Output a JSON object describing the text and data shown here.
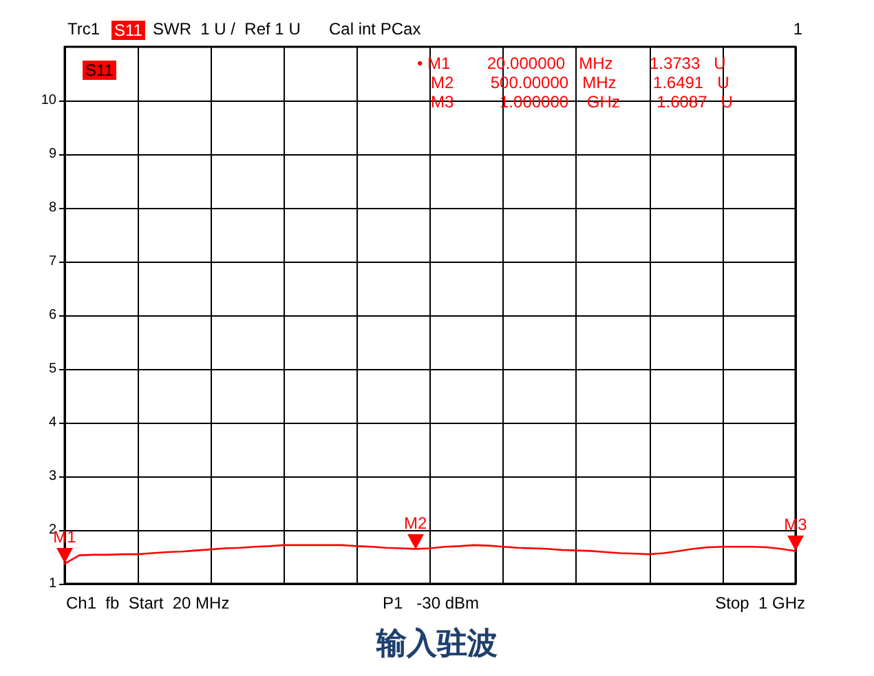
{
  "chart_data": {
    "type": "line",
    "title": "输入驻波",
    "categories": [
      null,
      null,
      null,
      null,
      null,
      null,
      null,
      null,
      null,
      null,
      null,
      null,
      null,
      null,
      null,
      null,
      null,
      null,
      null,
      null,
      null,
      null,
      null,
      null,
      null,
      null,
      null,
      null,
      null,
      null,
      null,
      null,
      null,
      null,
      null,
      null,
      null,
      null,
      null,
      null,
      null,
      null,
      null,
      null,
      null,
      null,
      null,
      null,
      null,
      null,
      null
    ],
    "ylim": [
      1,
      11
    ],
    "yticks": [
      1,
      2,
      3,
      4,
      5,
      6,
      7,
      8,
      9,
      10
    ],
    "tick_labels": "y",
    "grid": true,
    "marker": "none",
    "line_style": "solid",
    "series": [
      {
        "color": "#ff0000",
        "values": [
          1.3733,
          1.53,
          1.54,
          1.54,
          1.55,
          1.55,
          1.57,
          1.59,
          1.6,
          1.62,
          1.64,
          1.66,
          1.67,
          1.69,
          1.7,
          1.72,
          1.72,
          1.72,
          1.72,
          1.72,
          1.7,
          1.69,
          1.67,
          1.66,
          1.6491,
          1.66,
          1.69,
          1.7,
          1.72,
          1.71,
          1.69,
          1.67,
          1.66,
          1.65,
          1.63,
          1.62,
          1.61,
          1.59,
          1.57,
          1.56,
          1.55,
          1.57,
          1.61,
          1.65,
          1.68,
          1.69,
          1.69,
          1.69,
          1.68,
          1.65,
          1.6087
        ]
      }
    ],
    "annotations": [
      "Trc1",
      "S11",
      "SWR  1 U /  Ref 1 U",
      "Cal int PCax",
      "1",
      "S11",
      "• M1        20.000000   MHz        1.3733   U",
      "   M2        500.00000   MHz        1.6491   U",
      "   M3          1.000000    GHz        1.6087   U",
      "Ch1  fb  Start  20 MHz",
      "P1   -30 dBm",
      "Stop  1 GHz",
      {
        "text": "M1",
        "y": 1.3733
      },
      {
        "text": "M2",
        "y": 1.6491
      },
      {
        "text": "M3",
        "y": 1.6087
      }
    ]
  }
}
